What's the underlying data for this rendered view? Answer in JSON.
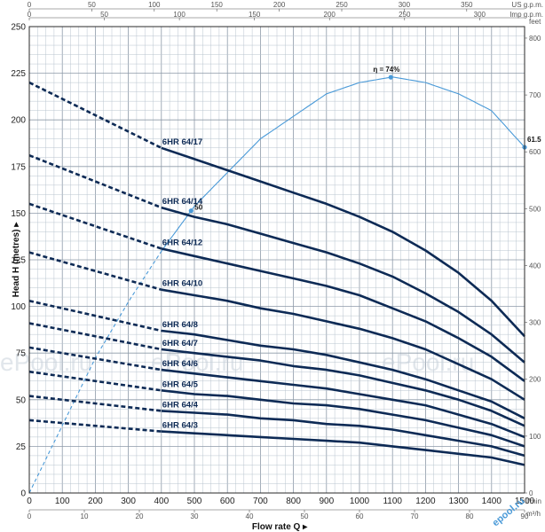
{
  "chart_data": {
    "type": "line",
    "xlabel": "Flow rate Q",
    "ylabel": "Head H (metres)",
    "x_unit": "l/min",
    "xlim": [
      0,
      1500
    ],
    "ylim": [
      0,
      250
    ],
    "x_ticks": [
      "0",
      "100",
      "200",
      "300",
      "400",
      "500",
      "600",
      "700",
      "800",
      "900",
      "1000",
      "1100",
      "1200",
      "1300",
      "1400",
      "1500"
    ],
    "y_ticks": [
      "0",
      "25",
      "50",
      "75",
      "100",
      "125",
      "150",
      "175",
      "200",
      "225",
      "250"
    ],
    "top_axis_1": {
      "unit": "US g.p.m.",
      "ticks": [
        "0",
        "50",
        "100",
        "150",
        "200",
        "250",
        "300",
        "350"
      ],
      "values": [
        0,
        50,
        100,
        150,
        200,
        250,
        300,
        350
      ]
    },
    "top_axis_2": {
      "unit": "Imp g.p.m.",
      "ticks": [
        "0",
        "50",
        "100",
        "150",
        "200",
        "250",
        "300"
      ],
      "values": [
        0,
        50,
        100,
        150,
        200,
        250,
        300
      ]
    },
    "right_axis": {
      "unit": "feet",
      "ticks": [
        "0",
        "100",
        "200",
        "300",
        "400",
        "500",
        "600",
        "700",
        "800"
      ],
      "values": [
        0,
        100,
        200,
        300,
        400,
        500,
        600,
        700,
        800
      ]
    },
    "bottom_axis_2": {
      "unit": "m³/h",
      "ticks": [
        "0",
        "10",
        "20",
        "30",
        "40",
        "50",
        "60",
        "70",
        "80",
        "90"
      ],
      "values": [
        0,
        10,
        20,
        30,
        40,
        50,
        60,
        70,
        80,
        90
      ]
    },
    "dashed_until": 400,
    "series": [
      {
        "name": "6HR 64/17",
        "x": [
          0,
          400,
          500,
          600,
          700,
          800,
          900,
          1000,
          1100,
          1200,
          1300,
          1400,
          1500
        ],
        "y": [
          220,
          185,
          179,
          173,
          167,
          161,
          155,
          148,
          140,
          130,
          118,
          103,
          84
        ]
      },
      {
        "name": "6HR 64/14",
        "x": [
          0,
          400,
          500,
          600,
          700,
          800,
          900,
          1000,
          1100,
          1200,
          1300,
          1400,
          1500
        ],
        "y": [
          181,
          153,
          148,
          144,
          139,
          134,
          129,
          123,
          116,
          107,
          97,
          85,
          70
        ]
      },
      {
        "name": "6HR 64/12",
        "x": [
          0,
          400,
          500,
          600,
          700,
          800,
          900,
          1000,
          1100,
          1200,
          1300,
          1400,
          1500
        ],
        "y": [
          155,
          131,
          127,
          123,
          119,
          115,
          111,
          106,
          99,
          92,
          83,
          73,
          60
        ]
      },
      {
        "name": "6HR 64/10",
        "x": [
          0,
          400,
          500,
          600,
          700,
          800,
          900,
          1000,
          1100,
          1200,
          1300,
          1400,
          1500
        ],
        "y": [
          129,
          109,
          106,
          103,
          99,
          96,
          92,
          88,
          83,
          77,
          69,
          61,
          50
        ]
      },
      {
        "name": "6HR 64/8",
        "x": [
          0,
          400,
          500,
          600,
          700,
          800,
          900,
          1000,
          1100,
          1200,
          1300,
          1400,
          1500
        ],
        "y": [
          103,
          87,
          85,
          82,
          79,
          77,
          74,
          70,
          66,
          61,
          55,
          49,
          40
        ]
      },
      {
        "name": "6HR 64/7",
        "x": [
          0,
          400,
          500,
          600,
          700,
          800,
          900,
          1000,
          1100,
          1200,
          1300,
          1400,
          1500
        ],
        "y": [
          91,
          77,
          75,
          73,
          71,
          68,
          66,
          63,
          59,
          55,
          50,
          44,
          36
        ]
      },
      {
        "name": "6HR 64/6",
        "x": [
          0,
          400,
          500,
          600,
          700,
          800,
          900,
          1000,
          1100,
          1200,
          1300,
          1400,
          1500
        ],
        "y": [
          78,
          66,
          64,
          62,
          60,
          58,
          56,
          53,
          50,
          47,
          42,
          37,
          30
        ]
      },
      {
        "name": "6HR 64/5",
        "x": [
          0,
          400,
          500,
          600,
          700,
          800,
          900,
          1000,
          1100,
          1200,
          1300,
          1400,
          1500
        ],
        "y": [
          65,
          55,
          53,
          52,
          50,
          48,
          47,
          45,
          42,
          39,
          35,
          31,
          25
        ]
      },
      {
        "name": "6HR 64/4",
        "x": [
          0,
          400,
          500,
          600,
          700,
          800,
          900,
          1000,
          1100,
          1200,
          1300,
          1400,
          1500
        ],
        "y": [
          52,
          44,
          43,
          42,
          40,
          39,
          37,
          36,
          34,
          31,
          28,
          25,
          20
        ]
      },
      {
        "name": "6HR 64/3",
        "x": [
          0,
          400,
          500,
          600,
          700,
          800,
          900,
          1000,
          1100,
          1200,
          1300,
          1400,
          1500
        ],
        "y": [
          39,
          33,
          32,
          31,
          30,
          29,
          28,
          27,
          25,
          23,
          21,
          19,
          15
        ]
      }
    ],
    "efficiency_curve": {
      "x": [
        0,
        100,
        200,
        300,
        400,
        500,
        600,
        700,
        800,
        900,
        1000,
        1100,
        1200,
        1300,
        1400,
        1500
      ],
      "percent": [
        0,
        12,
        24,
        34,
        43,
        51,
        57,
        63,
        67,
        71,
        73,
        74,
        73,
        71,
        68,
        61.5
      ],
      "points": [
        {
          "x": 490,
          "label": "50"
        },
        {
          "x": 1095,
          "label": "η = 74%"
        },
        {
          "x": 1500,
          "label": "61.5"
        }
      ],
      "color": "#4a9ad8"
    },
    "colors": {
      "curve": "#0d2a55",
      "efficiency": "#4a9ad8",
      "grid": "#8d9aa8"
    },
    "watermarks": [
      "ePool.ru",
      "ePool.ru",
      "ePool.ru"
    ],
    "logo": "epool.ru"
  }
}
